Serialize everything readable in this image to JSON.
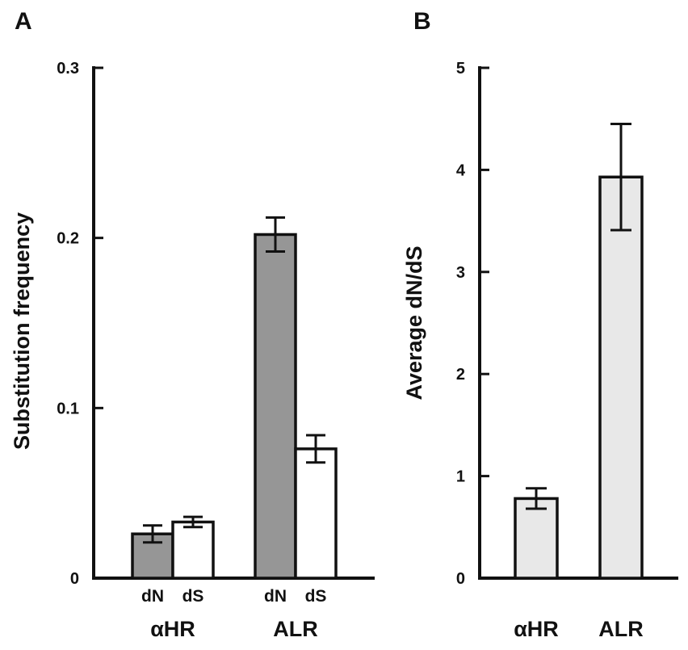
{
  "chart_data": [
    {
      "panel": "A",
      "type": "bar",
      "title": "",
      "xlabel": "",
      "ylabel": "Substitution frequency",
      "ylim": [
        0,
        0.3
      ],
      "yticks": [
        "0",
        "0.1",
        "0.2",
        "0.3"
      ],
      "groups": [
        "αHR",
        "ALR"
      ],
      "sublabels": [
        "dN",
        "dS"
      ],
      "series": [
        {
          "key": "dN",
          "color": "#969696",
          "values": [
            0.026,
            0.202
          ],
          "errors": [
            0.005,
            0.01
          ]
        },
        {
          "key": "dS",
          "color": "#ffffff",
          "values": [
            0.033,
            0.076
          ],
          "errors": [
            0.003,
            0.008
          ]
        }
      ]
    },
    {
      "panel": "B",
      "type": "bar",
      "title": "",
      "xlabel": "",
      "ylabel": "Average dN/dS",
      "ylim": [
        0,
        5
      ],
      "yticks": [
        "0",
        "1",
        "2",
        "3",
        "4",
        "5"
      ],
      "categories": [
        "αHR",
        "ALR"
      ],
      "color": "#e8e8e8",
      "values": [
        0.78,
        3.93
      ],
      "errors": [
        0.1,
        0.52
      ]
    }
  ]
}
